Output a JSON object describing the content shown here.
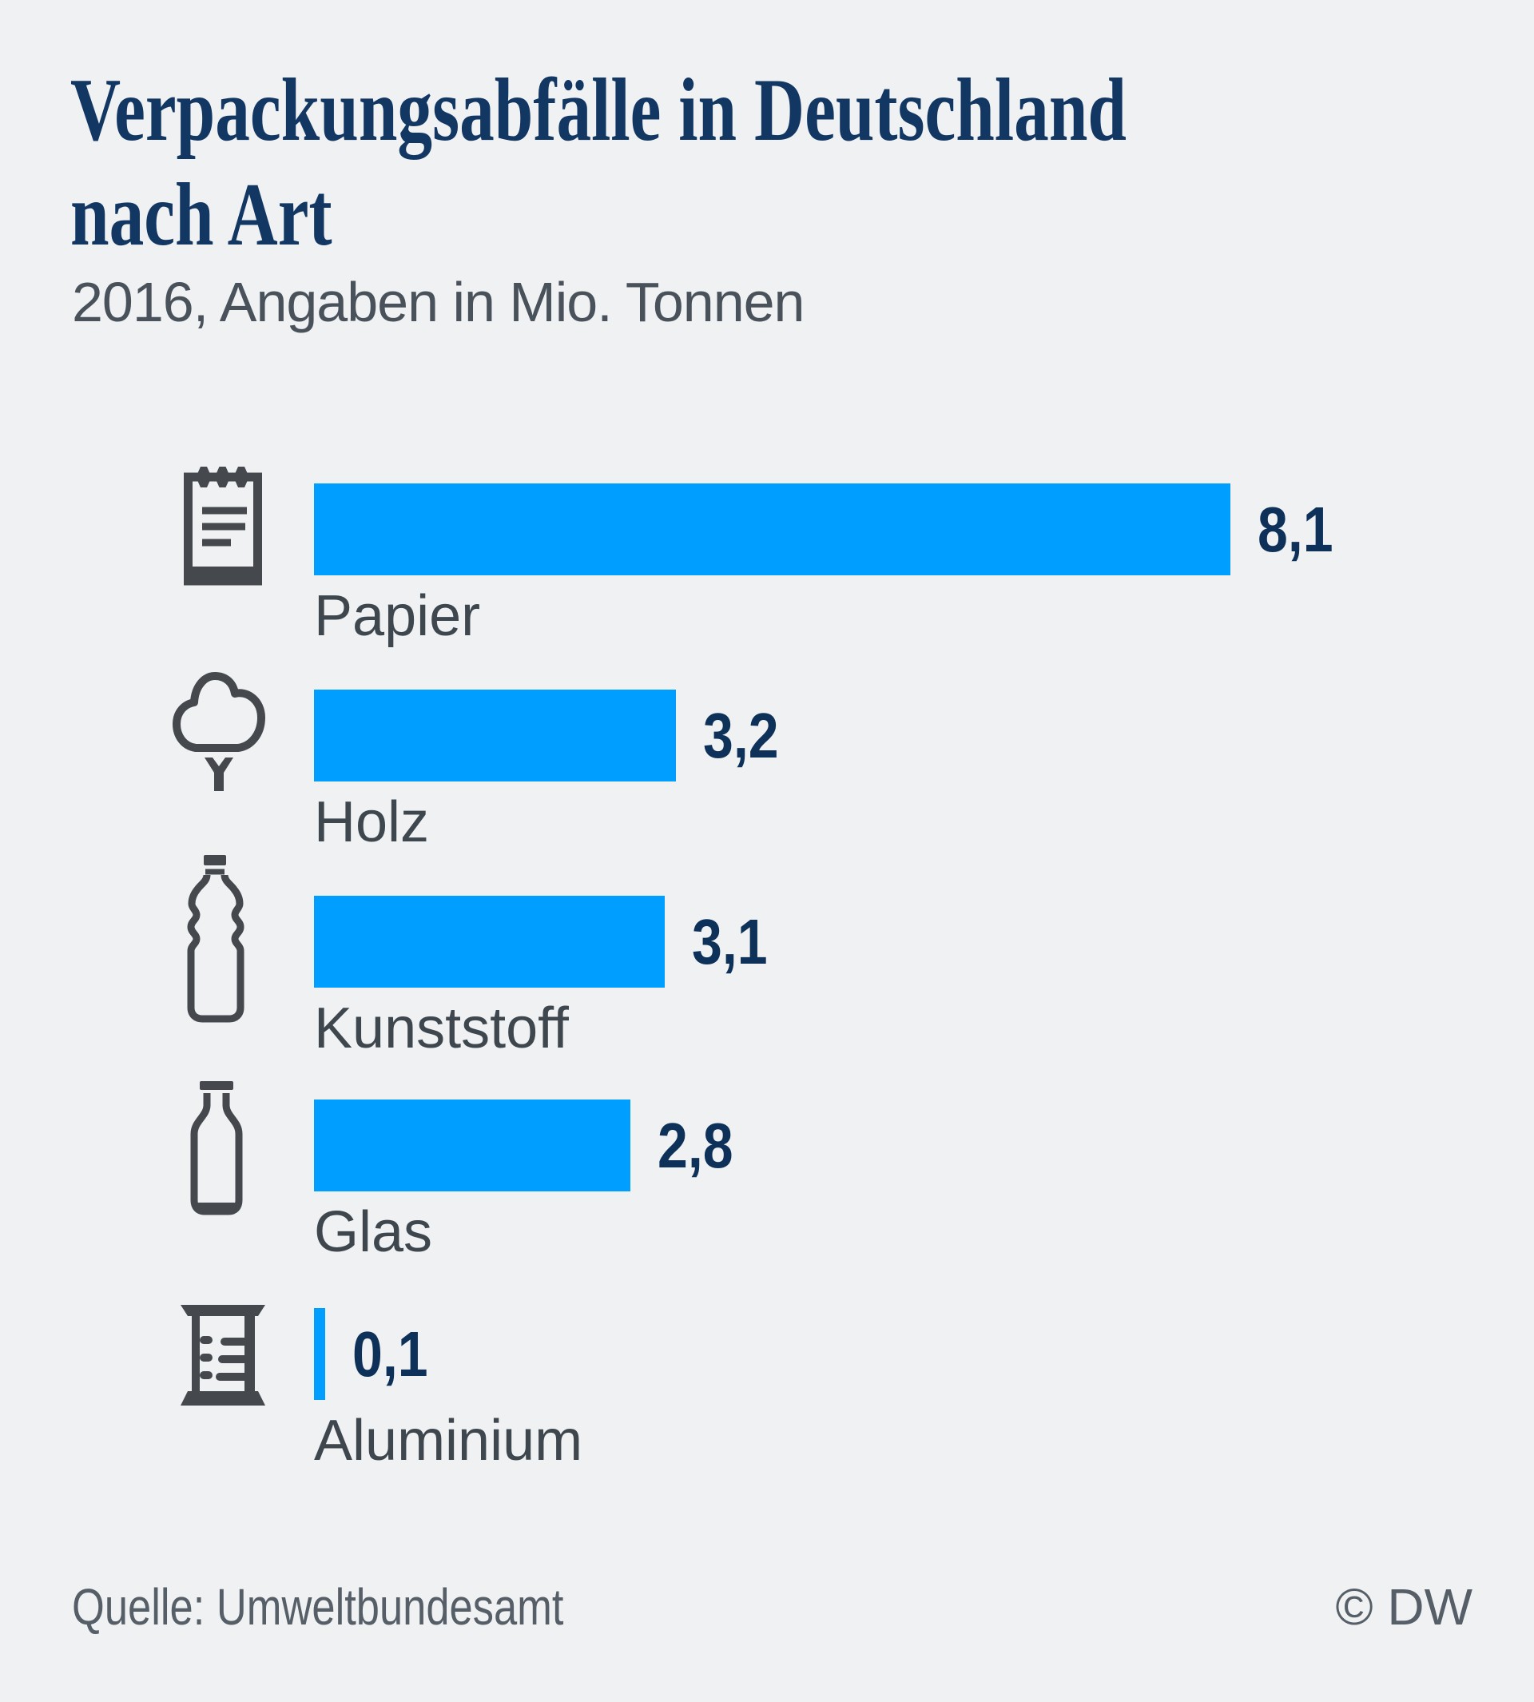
{
  "header": {
    "title": "Verpackungsabfälle in Deutschland nach Art",
    "title_lines": [
      "Verpackungsabfälle in Deutschland",
      "nach Art"
    ],
    "subtitle": "2016, Angaben in Mio. Tonnen"
  },
  "footer": {
    "source": "Quelle: Umweltbundesamt",
    "copyright": "© DW"
  },
  "colors": {
    "bar": "#009fff",
    "title": "#123763",
    "value_label": "#0d3158",
    "category_label": "#3e464e",
    "icon": "#45494e",
    "footer_text": "#565f67",
    "background": "#eff1f3"
  },
  "chart_data": {
    "type": "bar",
    "orientation": "horizontal",
    "title": "Verpackungsabfälle in Deutschland nach Art",
    "subtitle": "2016, Angaben in Mio. Tonnen",
    "year": "2016",
    "unit": "Mio. Tonnen",
    "categories": [
      "Papier",
      "Holz",
      "Kunststoff",
      "Glas",
      "Aluminium"
    ],
    "values": [
      8.1,
      3.2,
      3.1,
      2.8,
      0.1
    ],
    "value_labels": [
      "8,1",
      "3,2",
      "3,1",
      "2,8",
      "0,1"
    ],
    "icons": [
      "notepad-icon",
      "tree-icon",
      "plastic-bottle-icon",
      "glass-bottle-icon",
      "crucible-icon"
    ],
    "xlim": [
      0,
      8.6
    ],
    "grid": false,
    "legend": false,
    "axis_labels": false,
    "source": "Quelle: Umweltbundesamt",
    "attribution": "© DW"
  }
}
